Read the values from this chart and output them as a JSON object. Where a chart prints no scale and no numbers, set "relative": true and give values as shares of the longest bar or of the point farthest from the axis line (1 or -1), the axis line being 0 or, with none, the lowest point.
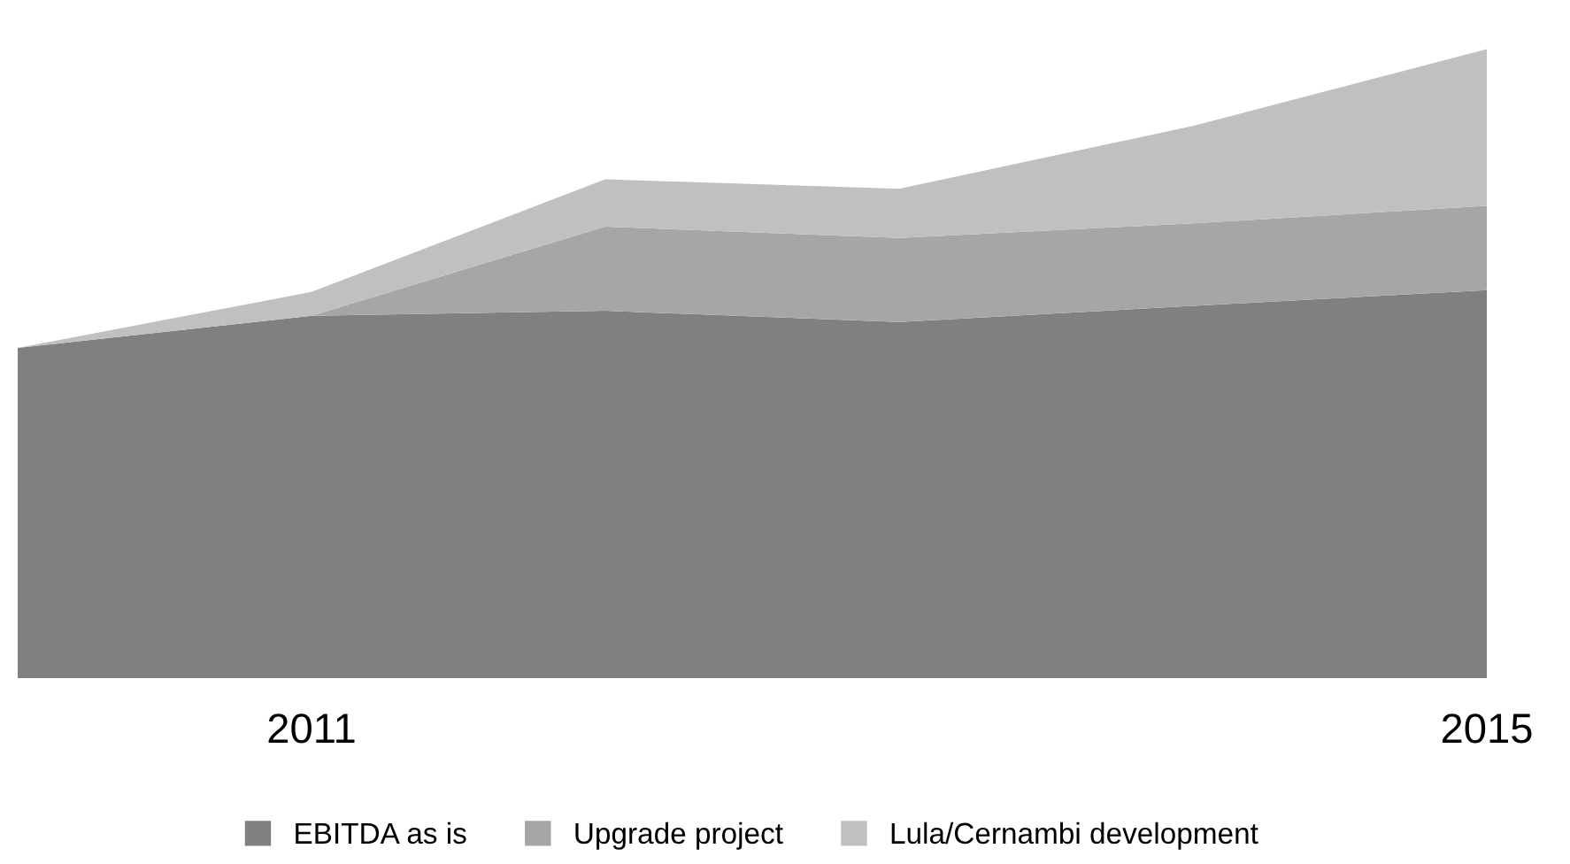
{
  "chart_data": {
    "type": "area",
    "stacked": true,
    "relative": true,
    "categories": [
      null,
      "2011",
      null,
      null,
      null,
      "2015"
    ],
    "series": [
      {
        "name": "EBITDA as is",
        "color": "#808080",
        "values": [
          0.525,
          0.576,
          0.584,
          0.566,
          0.592,
          0.617
        ]
      },
      {
        "name": "Upgrade project",
        "color": "#a6a6a6",
        "values": [
          0,
          0,
          0.134,
          0.134,
          0.131,
          0.134
        ]
      },
      {
        "name": "Lula/Cernambi development",
        "color": "#c0c0c0",
        "values": [
          0,
          0.038,
          0.075,
          0.078,
          0.155,
          0.249
        ]
      }
    ],
    "legend": "bottom",
    "grid": false
  }
}
